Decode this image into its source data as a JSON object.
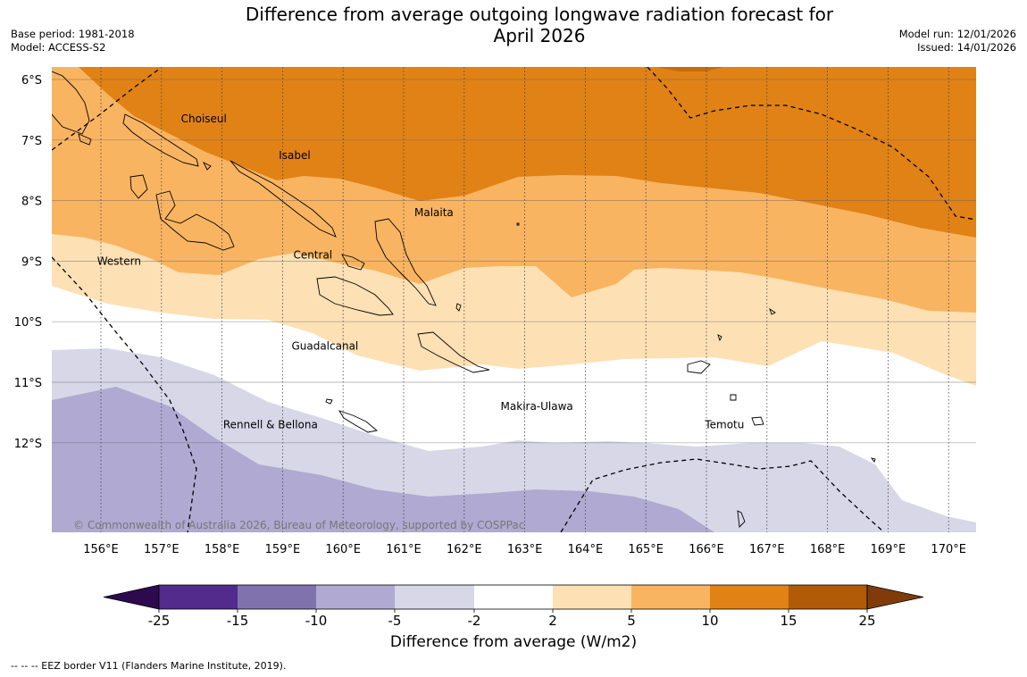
{
  "title": {
    "line1": "Difference from average outgoing longwave radiation forecast for",
    "line2": "April 2026"
  },
  "meta_left": {
    "base_period": "Base period: 1981-2018",
    "model": "Model: ACCESS-S2"
  },
  "meta_right": {
    "model_run": "Model run: 12/01/2026",
    "issued": "Issued: 14/01/2026"
  },
  "map": {
    "lon_range": [
      155.2,
      170.5
    ],
    "lat_range": [
      -13.5,
      -5.8
    ],
    "lon_ticks": [
      {
        "value": 156,
        "label": "156°E"
      },
      {
        "value": 157,
        "label": "157°E"
      },
      {
        "value": 158,
        "label": "158°E"
      },
      {
        "value": 159,
        "label": "159°E"
      },
      {
        "value": 160,
        "label": "160°E"
      },
      {
        "value": 161,
        "label": "161°E"
      },
      {
        "value": 162,
        "label": "162°E"
      },
      {
        "value": 163,
        "label": "163°E"
      },
      {
        "value": 164,
        "label": "164°E"
      },
      {
        "value": 165,
        "label": "165°E"
      },
      {
        "value": 166,
        "label": "166°E"
      },
      {
        "value": 167,
        "label": "167°E"
      },
      {
        "value": 168,
        "label": "168°E"
      },
      {
        "value": 169,
        "label": "169°E"
      },
      {
        "value": 170,
        "label": "170°E"
      }
    ],
    "lat_ticks": [
      {
        "value": -6,
        "label": "6°S"
      },
      {
        "value": -7,
        "label": "7°S"
      },
      {
        "value": -8,
        "label": "8°S"
      },
      {
        "value": -9,
        "label": "9°S"
      },
      {
        "value": -10,
        "label": "10°S"
      },
      {
        "value": -11,
        "label": "11°S"
      },
      {
        "value": -12,
        "label": "12°S"
      }
    ],
    "regions": [
      {
        "name": "Choiseul",
        "lon": 157.7,
        "lat": -6.65
      },
      {
        "name": "Isabel",
        "lon": 159.2,
        "lat": -7.25
      },
      {
        "name": "Malaita",
        "lon": 161.5,
        "lat": -8.2
      },
      {
        "name": "Central",
        "lon": 159.5,
        "lat": -8.9
      },
      {
        "name": "Western",
        "lon": 156.3,
        "lat": -9.0
      },
      {
        "name": "Guadalcanal",
        "lon": 159.7,
        "lat": -10.4
      },
      {
        "name": "Makira-Ulawa",
        "lon": 163.2,
        "lat": -11.4
      },
      {
        "name": "Rennell & Bellona",
        "lon": 158.8,
        "lat": -11.7
      },
      {
        "name": "Temotu",
        "lon": 166.3,
        "lat": -11.7
      }
    ],
    "copyright": "© Commonwealth of Australia 2026, Bureau of Meteorology, supported by COSPPac"
  },
  "colorbar": {
    "title": "Difference from average (W/m2)",
    "ticks": [
      "-25",
      "-15",
      "-10",
      "-5",
      "-2",
      "2",
      "5",
      "10",
      "15",
      "25"
    ],
    "colors": [
      "#522b8c",
      "#8073ad",
      "#b0a9d1",
      "#d7d7e8",
      "#ffffff",
      "#fde0b4",
      "#f9b461",
      "#e08216",
      "#b15a08"
    ],
    "under_color": "#2d0a4d",
    "over_color": "#7f3c0a"
  },
  "footer": "--  --  -- EEZ border V11 (Flanders Marine Institute, 2019).",
  "colors": {
    "band_10_15": "#e08216",
    "band_5_10": "#f9b461",
    "band_2_5": "#fde0b4",
    "band_m2_2": "#ffffff",
    "band_m5_m2": "#d7d7e8",
    "band_m10_m5": "#b0a9d1"
  }
}
